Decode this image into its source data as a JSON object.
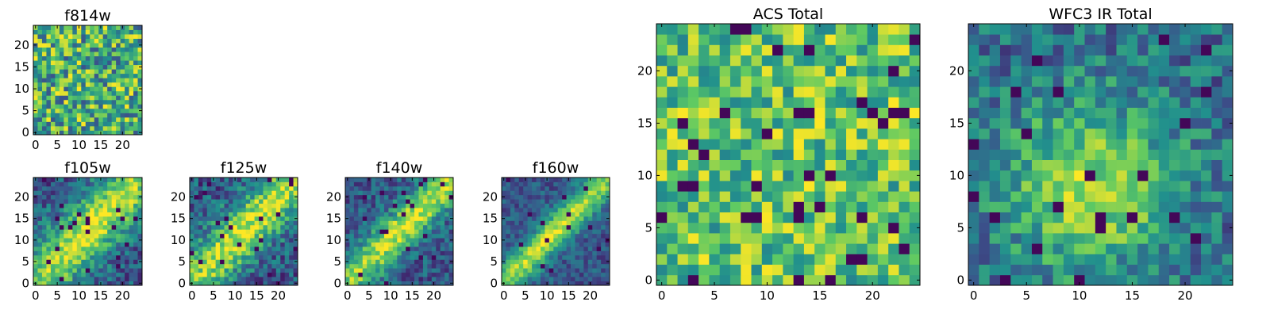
{
  "figure_title": "",
  "chart_data": [
    {
      "id": "f814w",
      "type": "heatmap",
      "title": "f814w",
      "grid": [
        25,
        25
      ],
      "xlim": [
        -0.5,
        24.5
      ],
      "ylim": [
        -0.5,
        24.5
      ],
      "x_ticks": [
        0,
        5,
        10,
        15,
        20
      ],
      "y_ticks": [
        0,
        5,
        10,
        15,
        20
      ],
      "colormap": "viridis",
      "pattern": "noise",
      "seed": 11
    },
    {
      "id": "f105w",
      "type": "heatmap",
      "title": "f105w",
      "grid": [
        25,
        25
      ],
      "xlim": [
        -0.5,
        24.5
      ],
      "ylim": [
        -0.5,
        24.5
      ],
      "x_ticks": [
        0,
        5,
        10,
        15,
        20
      ],
      "y_ticks": [
        0,
        5,
        10,
        15,
        20
      ],
      "colormap": "viridis",
      "pattern": "diagonal-band",
      "band_width": 4.5,
      "noise": 0.2,
      "peak": [
        12,
        13
      ],
      "seed": 23
    },
    {
      "id": "f125w",
      "type": "heatmap",
      "title": "f125w",
      "grid": [
        25,
        25
      ],
      "xlim": [
        -0.5,
        24.5
      ],
      "ylim": [
        -0.5,
        24.5
      ],
      "x_ticks": [
        0,
        5,
        10,
        15,
        20
      ],
      "y_ticks": [
        0,
        5,
        10,
        15,
        20
      ],
      "colormap": "viridis",
      "pattern": "diagonal-band",
      "band_width": 4.0,
      "noise": 0.22,
      "peak": [
        12,
        13
      ],
      "seed": 37
    },
    {
      "id": "f140w",
      "type": "heatmap",
      "title": "f140w",
      "grid": [
        25,
        25
      ],
      "xlim": [
        -0.5,
        24.5
      ],
      "ylim": [
        -0.5,
        24.5
      ],
      "x_ticks": [
        0,
        5,
        10,
        15,
        20
      ],
      "y_ticks": [
        0,
        5,
        10,
        15,
        20
      ],
      "colormap": "viridis",
      "pattern": "diagonal-band",
      "band_width": 3.0,
      "noise": 0.18,
      "peak": [
        14,
        15
      ],
      "seed": 41
    },
    {
      "id": "f160w",
      "type": "heatmap",
      "title": "f160w",
      "grid": [
        25,
        25
      ],
      "xlim": [
        -0.5,
        24.5
      ],
      "ylim": [
        -0.5,
        24.5
      ],
      "x_ticks": [
        0,
        5,
        10,
        15,
        20
      ],
      "y_ticks": [
        0,
        5,
        10,
        15,
        20
      ],
      "colormap": "viridis",
      "pattern": "diagonal-band",
      "band_width": 2.4,
      "noise": 0.14,
      "peak": [
        12,
        12
      ],
      "seed": 53
    },
    {
      "id": "acs_total",
      "type": "heatmap",
      "title": "ACS Total",
      "grid": [
        25,
        25
      ],
      "xlim": [
        -0.5,
        24.5
      ],
      "ylim": [
        -0.5,
        24.5
      ],
      "x_ticks": [
        0,
        5,
        10,
        15,
        20
      ],
      "y_ticks": [
        0,
        5,
        10,
        15,
        20
      ],
      "colormap": "viridis",
      "pattern": "noise-bright",
      "seed": 67
    },
    {
      "id": "wfc3_ir_total",
      "type": "heatmap",
      "title": "WFC3 IR Total",
      "grid": [
        25,
        25
      ],
      "xlim": [
        -0.5,
        24.5
      ],
      "ylim": [
        -0.5,
        24.5
      ],
      "x_ticks": [
        0,
        5,
        10,
        15,
        20
      ],
      "y_ticks": [
        0,
        5,
        10,
        15,
        20
      ],
      "colormap": "viridis",
      "pattern": "blob",
      "noise": 0.35,
      "peak": [
        11,
        9
      ],
      "seed": 79
    }
  ],
  "colors": {
    "viridis": [
      "#440154",
      "#3b528b",
      "#21908d",
      "#5dc963",
      "#fde725"
    ]
  }
}
